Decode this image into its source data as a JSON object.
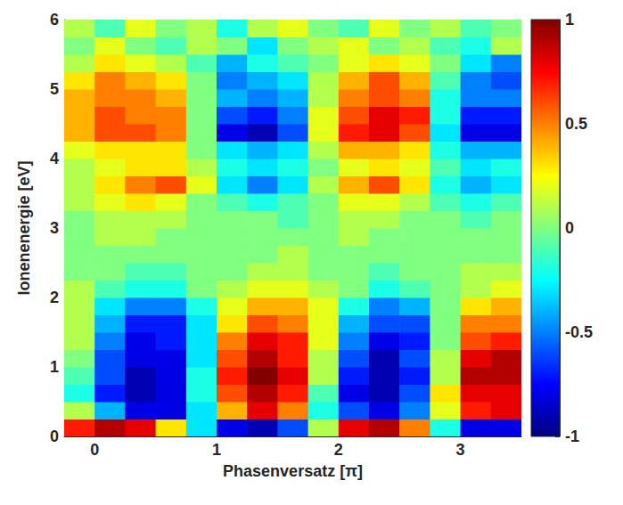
{
  "chart_data": {
    "type": "heatmap",
    "x_label": "Phasenversatz [π]",
    "y_label": "Ionenenergie [eV]",
    "x": [
      -0.125,
      0.125,
      0.375,
      0.625,
      0.875,
      1.125,
      1.375,
      1.625,
      1.875,
      2.125,
      2.375,
      2.625,
      2.875,
      3.125,
      3.375
    ],
    "y": [
      0.125,
      0.375,
      0.625,
      0.875,
      1.125,
      1.375,
      1.625,
      1.875,
      2.125,
      2.375,
      2.625,
      2.875,
      3.125,
      3.375,
      3.625,
      3.875,
      4.125,
      4.375,
      4.625,
      4.875,
      5.125,
      5.375,
      5.625,
      5.875
    ],
    "values": [
      [
        0.7,
        0.9,
        0.8,
        0.3,
        -0.3,
        -0.8,
        -0.9,
        -0.6,
        0.1,
        0.8,
        0.9,
        0.5,
        -0.2,
        -0.8,
        -0.8
      ],
      [
        0.1,
        -0.4,
        -0.8,
        -0.8,
        -0.3,
        0.4,
        0.8,
        0.5,
        -0.2,
        -0.6,
        -0.8,
        -0.5,
        0.2,
        0.7,
        0.8
      ],
      [
        -0.2,
        -0.7,
        -0.9,
        -0.8,
        -0.2,
        0.6,
        0.9,
        0.7,
        -0.1,
        -0.8,
        -0.9,
        -0.6,
        0.3,
        0.8,
        0.8
      ],
      [
        -0.1,
        -0.6,
        -0.9,
        -0.8,
        -0.2,
        0.7,
        1.0,
        0.8,
        0.1,
        -0.7,
        -0.9,
        -0.7,
        0.1,
        0.9,
        0.9
      ],
      [
        0,
        -0.6,
        -0.8,
        -0.8,
        -0.3,
        0.6,
        0.9,
        0.7,
        0.1,
        -0.6,
        -0.9,
        -0.6,
        0.1,
        0.8,
        0.9
      ],
      [
        0.1,
        -0.5,
        -0.8,
        -0.7,
        -0.3,
        0.5,
        0.8,
        0.7,
        0.2,
        -0.5,
        -0.8,
        -0.7,
        0,
        0.6,
        0.7
      ],
      [
        0.1,
        -0.4,
        -0.7,
        -0.7,
        -0.3,
        0.3,
        0.6,
        0.5,
        0.2,
        -0.4,
        -0.6,
        -0.6,
        0,
        0.5,
        0.5
      ],
      [
        0.1,
        -0.3,
        -0.5,
        -0.5,
        -0.2,
        0.2,
        0.4,
        0.4,
        0.2,
        -0.2,
        -0.5,
        -0.4,
        0,
        0.3,
        0.4
      ],
      [
        0.1,
        -0.1,
        -0.2,
        -0.2,
        0,
        0.1,
        0.2,
        0.2,
        0.1,
        0,
        -0.2,
        -0.1,
        0,
        0.1,
        0.2
      ],
      [
        0,
        0,
        -0.1,
        -0.1,
        0,
        0,
        0.1,
        0.1,
        0,
        0,
        -0.1,
        0,
        0,
        0.1,
        0.1
      ],
      [
        0,
        0,
        0,
        0,
        0,
        0,
        0,
        0.1,
        0,
        0,
        0,
        0,
        0,
        0,
        0
      ],
      [
        0,
        0.1,
        0.1,
        0,
        0,
        0,
        0,
        0,
        0,
        0.1,
        0,
        0,
        0,
        0,
        0
      ],
      [
        0,
        0.1,
        0.1,
        0.1,
        0,
        0,
        0,
        -0.1,
        0,
        0.1,
        0.1,
        0,
        0,
        -0.1,
        0
      ],
      [
        0.1,
        0.2,
        0.3,
        0.2,
        0,
        -0.1,
        -0.2,
        -0.1,
        0,
        0.2,
        0.2,
        0.1,
        -0.1,
        -0.2,
        -0.1
      ],
      [
        0.1,
        0.3,
        0.5,
        0.6,
        0.2,
        -0.3,
        -0.5,
        -0.3,
        0.1,
        0.4,
        0.6,
        0.3,
        -0.2,
        -0.4,
        -0.3
      ],
      [
        0.1,
        0.2,
        0.3,
        0.3,
        0.1,
        -0.2,
        -0.3,
        -0.2,
        0,
        0.2,
        0.3,
        0.2,
        -0.1,
        -0.3,
        -0.2
      ],
      [
        0.2,
        0.3,
        0.3,
        0.3,
        0,
        -0.3,
        -0.4,
        -0.3,
        0.1,
        0.4,
        0.4,
        0.3,
        -0.2,
        -0.4,
        -0.4
      ],
      [
        0.4,
        0.6,
        0.6,
        0.5,
        0,
        -0.8,
        -0.9,
        -0.6,
        0.2,
        0.7,
        0.8,
        0.6,
        -0.3,
        -0.8,
        -0.8
      ],
      [
        0.4,
        0.6,
        0.5,
        0.5,
        0,
        -0.6,
        -0.7,
        -0.5,
        0.2,
        0.6,
        0.8,
        0.7,
        -0.2,
        -0.7,
        -0.7
      ],
      [
        0.4,
        0.5,
        0.5,
        0.4,
        0,
        -0.4,
        -0.5,
        -0.4,
        0.1,
        0.5,
        0.6,
        0.5,
        -0.2,
        -0.5,
        -0.5
      ],
      [
        0.3,
        0.5,
        0.4,
        0.3,
        0,
        -0.5,
        -0.4,
        -0.3,
        0.1,
        0.4,
        0.6,
        0.4,
        -0.1,
        -0.5,
        -0.6
      ],
      [
        0.1,
        0.3,
        0.2,
        0.1,
        -0.1,
        -0.4,
        -0.2,
        -0.1,
        0,
        0.2,
        0.3,
        0.2,
        0,
        -0.3,
        -0.5
      ],
      [
        0,
        0.2,
        0,
        -0.1,
        0.1,
        0,
        -0.3,
        0,
        0.1,
        0.2,
        0,
        0.1,
        -0.1,
        -0.2,
        0.1
      ],
      [
        0.1,
        -0.1,
        0.2,
        0,
        0.1,
        -0.2,
        0.1,
        0.2,
        0,
        -0.1,
        0.2,
        0,
        0.1,
        -0.1,
        0
      ]
    ],
    "xlim": [
      -0.25,
      3.5
    ],
    "xticks": [
      0,
      1,
      2,
      3
    ],
    "ylim": [
      0,
      6
    ],
    "yticks": [
      0,
      1,
      2,
      3,
      4,
      5,
      6
    ],
    "colorbar_lim": [
      -1,
      1
    ],
    "colorbar_ticks": [
      -1,
      -0.5,
      0,
      0.5,
      1
    ],
    "color": "jet",
    "grid": false
  }
}
